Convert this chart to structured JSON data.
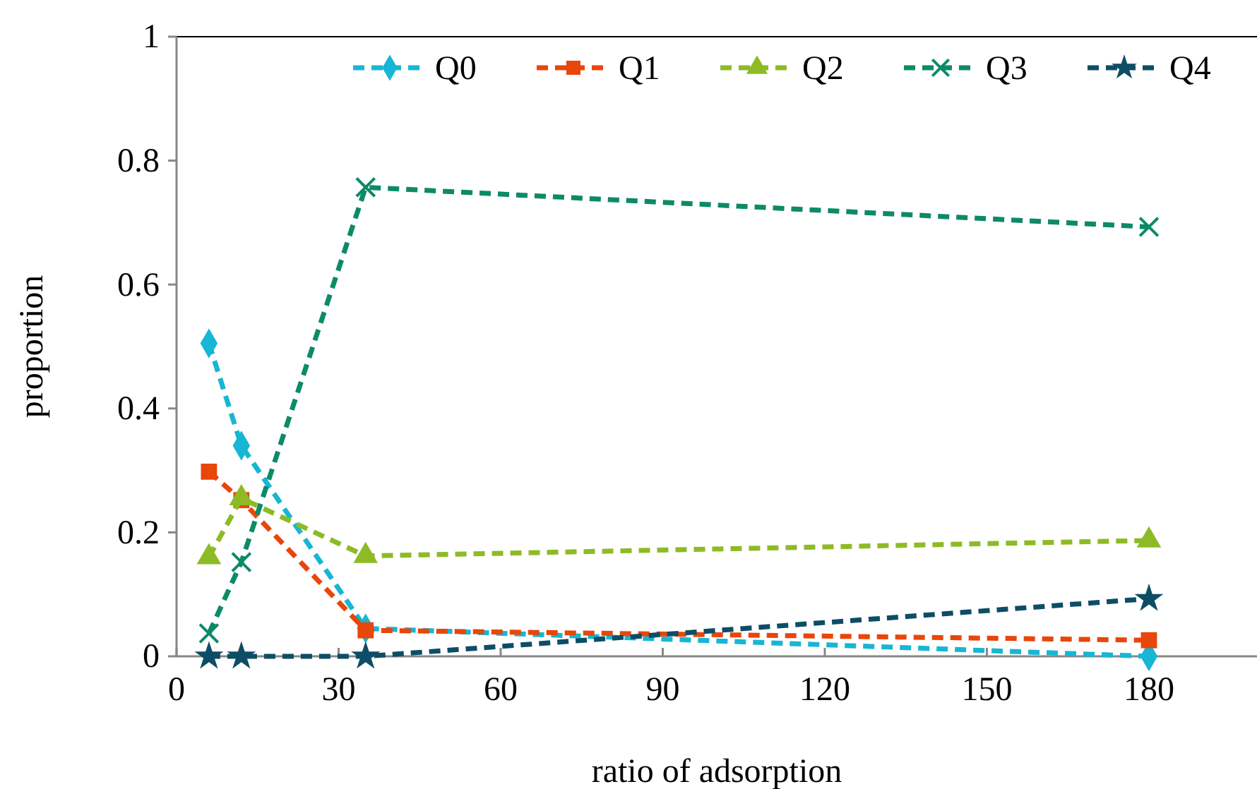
{
  "chart_data": {
    "type": "line",
    "xlabel": "ratio of adsorption",
    "ylabel": "proportion",
    "x": [
      6,
      12,
      35,
      180
    ],
    "series": [
      {
        "name": "Q0",
        "color": "#17b6d4",
        "marker": "diamond",
        "values": [
          0.505,
          0.34,
          0.045,
          0
        ]
      },
      {
        "name": "Q1",
        "color": "#e8460a",
        "marker": "square",
        "values": [
          0.298,
          0.252,
          0.042,
          0.026
        ]
      },
      {
        "name": "Q2",
        "color": "#8dbb25",
        "marker": "triangle",
        "values": [
          0.16,
          0.255,
          0.162,
          0.187
        ]
      },
      {
        "name": "Q3",
        "color": "#0d8a68",
        "marker": "cross",
        "values": [
          0.037,
          0.152,
          0.757,
          0.693
        ]
      },
      {
        "name": "Q4",
        "color": "#0e4d66",
        "marker": "star",
        "values": [
          0,
          0,
          0,
          0.093
        ]
      }
    ],
    "xlim": [
      0,
      200
    ],
    "xticks": [
      0,
      30,
      60,
      90,
      120,
      150,
      180
    ],
    "ylim": [
      0,
      1
    ],
    "yticks": [
      0,
      0.2,
      0.4,
      0.6,
      0.8,
      1
    ],
    "line_style": "dashed",
    "legend": "top",
    "grid": false
  }
}
